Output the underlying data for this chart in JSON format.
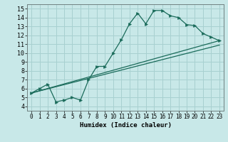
{
  "bg_color": "#c8e8e8",
  "line_color": "#1a6b5a",
  "grid_color": "#a8d0d0",
  "xlabel": "Humidex (Indice chaleur)",
  "xlim": [
    -0.5,
    23.5
  ],
  "ylim": [
    3.5,
    15.5
  ],
  "xticks": [
    0,
    1,
    2,
    3,
    4,
    5,
    6,
    7,
    8,
    9,
    10,
    11,
    12,
    13,
    14,
    15,
    16,
    17,
    18,
    19,
    20,
    21,
    22,
    23
  ],
  "yticks": [
    4,
    5,
    6,
    7,
    8,
    9,
    10,
    11,
    12,
    13,
    14,
    15
  ],
  "curve1_x": [
    0,
    1,
    2,
    3,
    4,
    5,
    6,
    7,
    8,
    9,
    10,
    11,
    12,
    13,
    14,
    15,
    16,
    17,
    18,
    19,
    20,
    21,
    22,
    23
  ],
  "curve1_y": [
    5.5,
    6.0,
    6.5,
    4.5,
    4.7,
    5.0,
    4.7,
    7.0,
    8.5,
    8.5,
    10.0,
    11.5,
    13.3,
    14.5,
    13.3,
    14.8,
    14.8,
    14.2,
    14.0,
    13.2,
    13.1,
    12.2,
    11.8,
    11.4
  ],
  "line1_x": [
    0,
    23
  ],
  "line1_y": [
    5.5,
    11.4
  ],
  "line2_x": [
    0,
    23
  ],
  "line2_y": [
    5.5,
    10.9
  ]
}
